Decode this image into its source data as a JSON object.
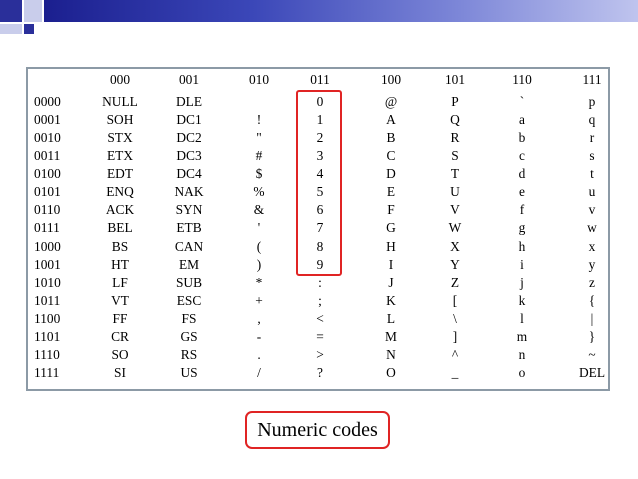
{
  "columns": [
    "000",
    "001",
    "010",
    "011",
    "100",
    "101",
    "110",
    "111"
  ],
  "rows": [
    {
      "code": "0000",
      "cells": [
        "NULL",
        "DLE",
        "",
        "0",
        "@",
        "P",
        "`",
        "p"
      ]
    },
    {
      "code": "0001",
      "cells": [
        "SOH",
        "DC1",
        "!",
        "1",
        "A",
        "Q",
        "a",
        "q"
      ]
    },
    {
      "code": "0010",
      "cells": [
        "STX",
        "DC2",
        "\"",
        "2",
        "B",
        "R",
        "b",
        "r"
      ]
    },
    {
      "code": "0011",
      "cells": [
        "ETX",
        "DC3",
        "#",
        "3",
        "C",
        "S",
        "c",
        "s"
      ]
    },
    {
      "code": "0100",
      "cells": [
        "EDT",
        "DC4",
        "$",
        "4",
        "D",
        "T",
        "d",
        "t"
      ]
    },
    {
      "code": "0101",
      "cells": [
        "ENQ",
        "NAK",
        "%",
        "5",
        "E",
        "U",
        "e",
        "u"
      ]
    },
    {
      "code": "0110",
      "cells": [
        "ACK",
        "SYN",
        "&",
        "6",
        "F",
        "V",
        "f",
        "v"
      ]
    },
    {
      "code": "0111",
      "cells": [
        "BEL",
        "ETB",
        "'",
        "7",
        "G",
        "W",
        "g",
        "w"
      ]
    },
    {
      "code": "1000",
      "cells": [
        "BS",
        "CAN",
        "(",
        "8",
        "H",
        "X",
        "h",
        "x"
      ]
    },
    {
      "code": "1001",
      "cells": [
        "HT",
        "EM",
        ")",
        "9",
        "I",
        "Y",
        "i",
        "y"
      ]
    },
    {
      "code": "1010",
      "cells": [
        "LF",
        "SUB",
        "*",
        ":",
        "J",
        "Z",
        "j",
        "z"
      ]
    },
    {
      "code": "1011",
      "cells": [
        "VT",
        "ESC",
        "+",
        ";",
        "K",
        "[",
        "k",
        "{"
      ]
    },
    {
      "code": "1100",
      "cells": [
        "FF",
        "FS",
        ",",
        "<",
        "L",
        "\\",
        "l",
        "|"
      ]
    },
    {
      "code": "1101",
      "cells": [
        "CR",
        "GS",
        "-",
        "=",
        "M",
        "]",
        "m",
        "}"
      ]
    },
    {
      "code": "1110",
      "cells": [
        "SO",
        "RS",
        ".",
        ">",
        "N",
        "^",
        "n",
        "~"
      ]
    },
    {
      "code": "1111",
      "cells": [
        "SI",
        "US",
        "/",
        "?",
        "O",
        "_",
        "o",
        "DEL"
      ]
    }
  ],
  "caption": "Numeric codes",
  "colors": {
    "highlight": "#e02424",
    "table_border": "#8c9aa6",
    "bar_start": "#1b1f8f",
    "bar_end": "#bfc4ee"
  }
}
